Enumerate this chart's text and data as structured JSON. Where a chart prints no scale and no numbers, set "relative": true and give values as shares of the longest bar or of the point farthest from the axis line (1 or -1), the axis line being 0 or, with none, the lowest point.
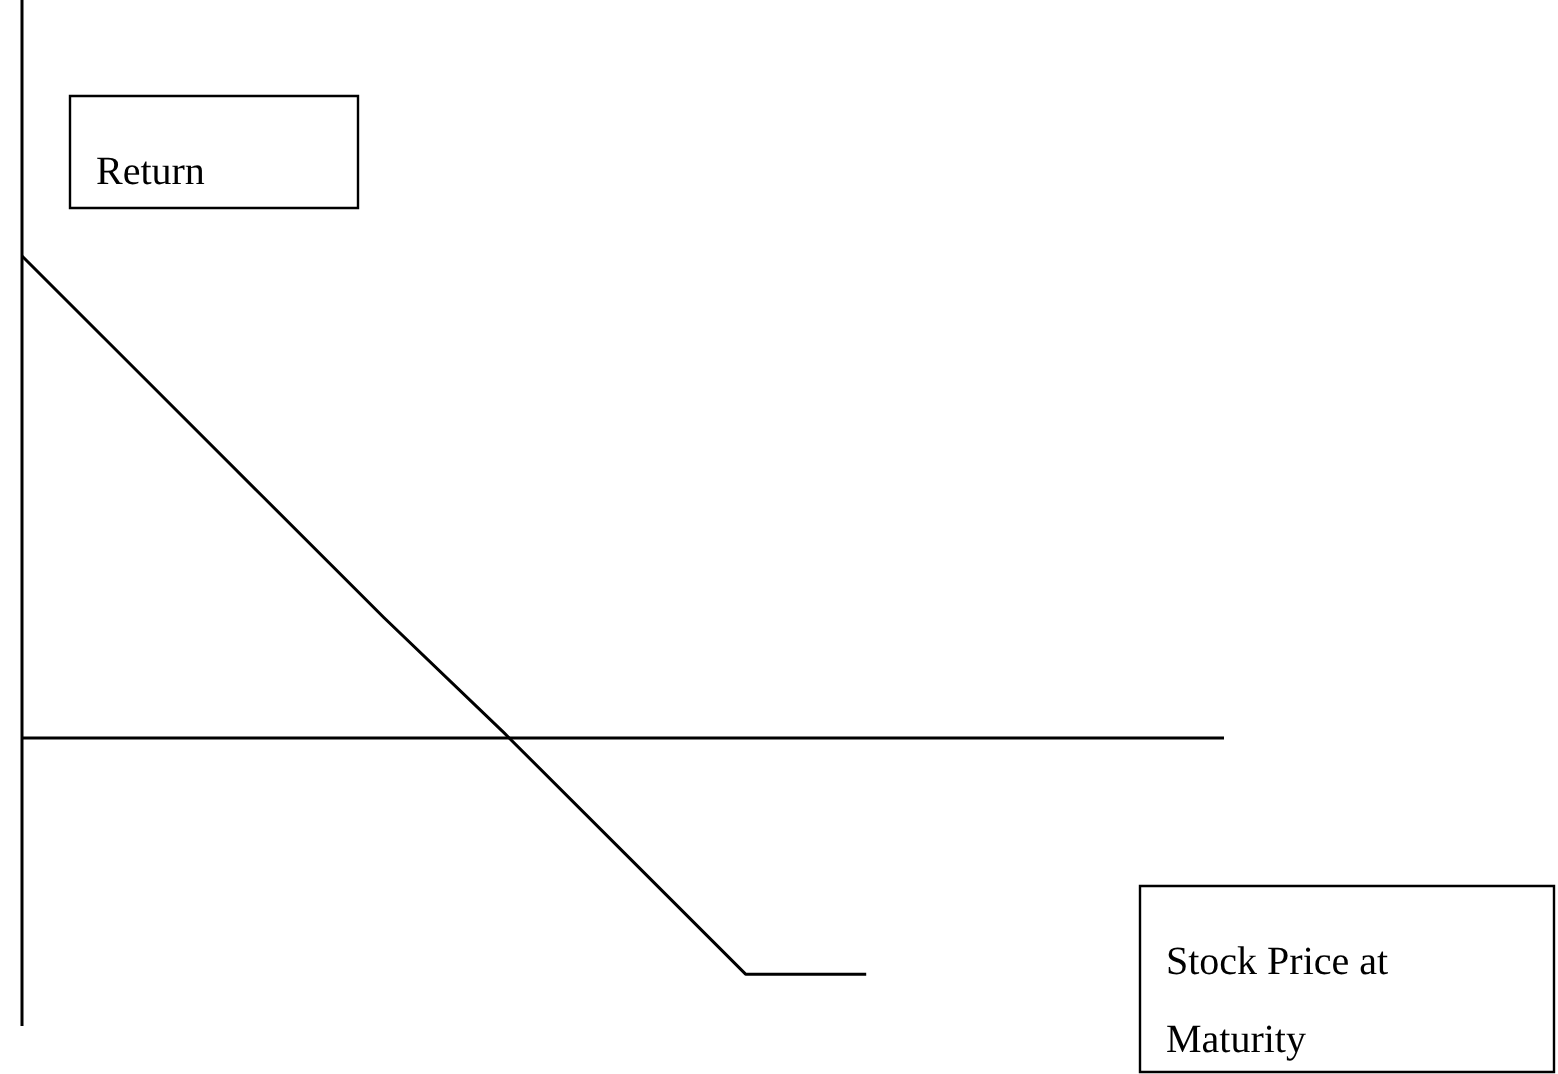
{
  "chart_data": {
    "type": "line",
    "relative": true,
    "annotations": [
      "Stock Price at Maturity"
    ],
    "ylabel": "Return",
    "marker": "none",
    "line_style": "solid",
    "categories": [
      null,
      null,
      null,
      null,
      null,
      null,
      null,
      null
    ],
    "series": [
      {
        "color": "#000000",
        "values": [
          1,
          0.75,
          0.5,
          0.25,
          0.01,
          -0.24,
          -0.49,
          -0.49
        ]
      }
    ]
  }
}
